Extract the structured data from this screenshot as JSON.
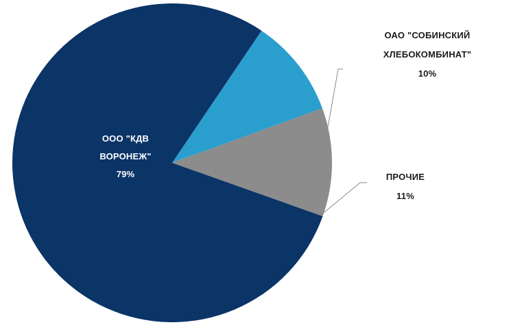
{
  "chart_data": {
    "type": "pie",
    "title": "",
    "slices": [
      {
        "label": "ООО \"КДВ ВОРОНЕЖ\"",
        "label_lines": [
          "ООО \"КДВ",
          "ВОРОНЕЖ\""
        ],
        "value": 79,
        "value_label": "79%",
        "color": "#0b3467",
        "label_position": "inside"
      },
      {
        "label": "ОАО \"СОБИНСКИЙ ХЛЕБОКОМБИНАТ\"",
        "label_lines": [
          "ОАО \"СОБИНСКИЙ",
          "ХЛЕБОКОМБИНАТ\""
        ],
        "value": 10,
        "value_label": "10%",
        "color": "#2a9fce",
        "label_position": "outside"
      },
      {
        "label": "ПРОЧИЕ",
        "label_lines": [
          "ПРОЧИЕ"
        ],
        "value": 11,
        "value_label": "11%",
        "color": "#8c8c8c",
        "label_position": "outside"
      }
    ],
    "legend": "none",
    "grid": false
  }
}
